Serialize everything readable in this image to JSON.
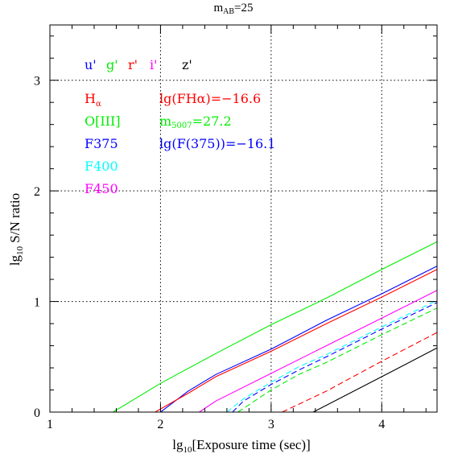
{
  "chart_data": {
    "type": "line",
    "title": "m",
    "title_sub": "AB",
    "title_tail": "=25",
    "xlabel_pre": "lg",
    "xlabel_sub": "10",
    "xlabel_post": "[Exposure time (sec)]",
    "ylabel_pre": "lg",
    "ylabel_sub": "10",
    "ylabel_post": " S/N ratio",
    "xlim": [
      1,
      4.5
    ],
    "ylim": [
      0,
      3.5
    ],
    "x_ticks": [
      1,
      2,
      3,
      4
    ],
    "y_ticks": [
      0,
      1,
      2,
      3
    ],
    "grid": "dotted, major ticks",
    "filter_legend": [
      {
        "label": "u'",
        "color": "#0000ff"
      },
      {
        "label": "g'",
        "color": "#00ee00"
      },
      {
        "label": "r'",
        "color": "#ff0000"
      },
      {
        "label": "i'",
        "color": "#ff00ff"
      },
      {
        "label": "z'",
        "color": "#000000"
      }
    ],
    "line_legend": [
      {
        "label": "H",
        "sub": "α",
        "color": "#ff0000"
      },
      {
        "label": "O[III]",
        "color": "#00ee00"
      },
      {
        "label": "F375",
        "color": "#0000ff"
      },
      {
        "label": "F400",
        "color": "#00ffff"
      },
      {
        "label": "F450",
        "color": "#ff00ff"
      }
    ],
    "annotations": [
      {
        "text": "lg(FHα)=−16.6",
        "color": "#ff0000"
      },
      {
        "parts": [
          "m",
          "5007",
          "=27.2"
        ],
        "color": "#00ee00"
      },
      {
        "text": "lg(F(375))=−16.1",
        "color": "#0000ff"
      }
    ],
    "series": [
      {
        "name": "O[III]",
        "color": "#00ee00",
        "dash": "solid",
        "x": [
          1.57,
          2.0,
          2.5,
          3.0,
          3.5,
          4.0,
          4.5
        ],
        "y": [
          0,
          0.26,
          0.53,
          0.79,
          1.03,
          1.29,
          1.54
        ]
      },
      {
        "name": "F375",
        "color": "#0000ff",
        "dash": "solid",
        "x": [
          2.0,
          2.25,
          2.5,
          3.0,
          3.5,
          4.0,
          4.5
        ],
        "y": [
          0,
          0.19,
          0.34,
          0.57,
          0.83,
          1.07,
          1.32
        ]
      },
      {
        "name": "H",
        "color": "#ff0000",
        "dash": "solid",
        "x": [
          1.95,
          2.25,
          2.5,
          3.0,
          3.5,
          4.0,
          4.5
        ],
        "y": [
          0,
          0.17,
          0.32,
          0.55,
          0.8,
          1.04,
          1.29
        ]
      },
      {
        "name": "F450",
        "color": "#ff00ff",
        "dash": "solid",
        "x": [
          2.35,
          2.5,
          3.0,
          3.5,
          4.0,
          4.5
        ],
        "y": [
          0,
          0.1,
          0.35,
          0.6,
          0.85,
          1.1
        ]
      },
      {
        "name": "F400",
        "color": "#00ffff",
        "dash": "dashed",
        "x": [
          2.6,
          2.75,
          3.0,
          3.25,
          3.5,
          4.0,
          4.5
        ],
        "y": [
          0,
          0.12,
          0.27,
          0.41,
          0.52,
          0.77,
          1.01
        ]
      },
      {
        "name": "u'",
        "color": "#0000ff",
        "dash": "dashed",
        "x": [
          2.65,
          2.75,
          3.0,
          3.25,
          3.5,
          4.0,
          4.5
        ],
        "y": [
          0,
          0.1,
          0.25,
          0.38,
          0.5,
          0.75,
          0.99
        ]
      },
      {
        "name": "g'",
        "color": "#00ee00",
        "dash": "dashed",
        "x": [
          2.7,
          3.0,
          3.25,
          3.5,
          4.0,
          4.5
        ],
        "y": [
          0,
          0.2,
          0.34,
          0.45,
          0.7,
          0.94
        ]
      },
      {
        "name": "r'",
        "color": "#ff0000",
        "dash": "dashed",
        "x": [
          3.1,
          3.5,
          4.0,
          4.5
        ],
        "y": [
          0,
          0.19,
          0.46,
          0.72
        ]
      },
      {
        "name": "z'",
        "color": "#000000",
        "dash": "solid",
        "x": [
          3.38,
          4.0,
          4.5
        ],
        "y": [
          0,
          0.32,
          0.58
        ]
      }
    ]
  }
}
